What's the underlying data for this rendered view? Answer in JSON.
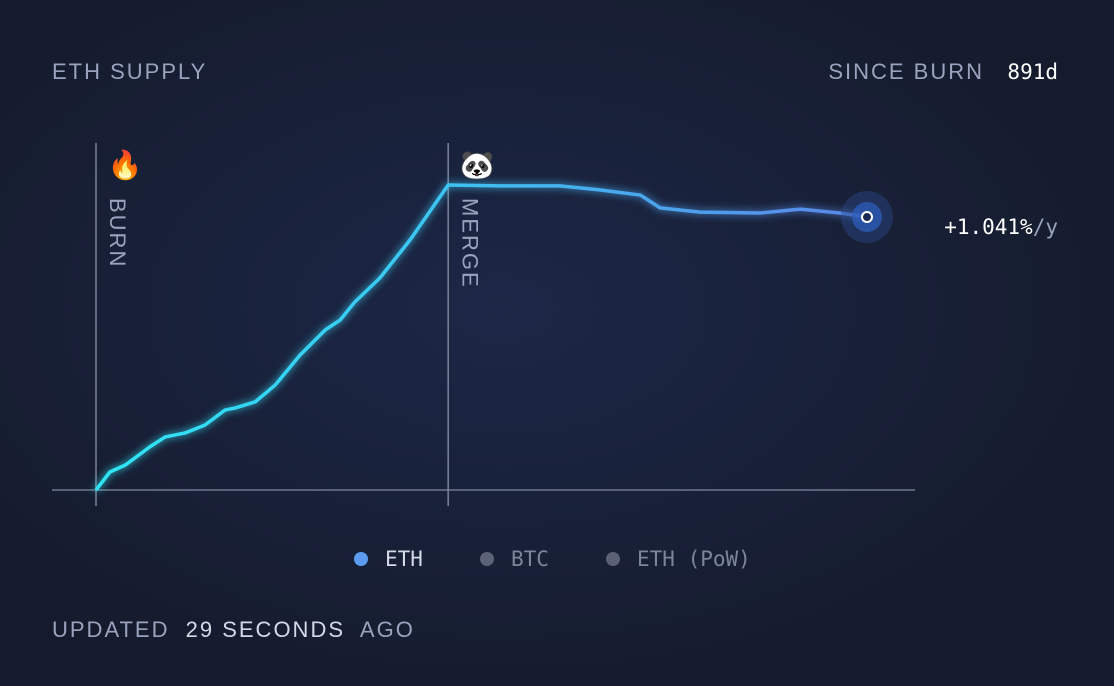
{
  "chart_data": {
    "type": "line",
    "title": "ETH SUPPLY",
    "since_label": "SINCE BURN",
    "since_value": "891d",
    "x": [
      0,
      16,
      34,
      62,
      80,
      103,
      126,
      149,
      161,
      184,
      207,
      236,
      265,
      282,
      299,
      328,
      363,
      407,
      467,
      536,
      582,
      629,
      652,
      698,
      767,
      814,
      860,
      891
    ],
    "series": [
      {
        "name": "ETH",
        "color": "#5b9cf0",
        "values": [
          0,
          5.9,
          8.2,
          14.1,
          17.4,
          18.7,
          21.3,
          26.2,
          26.9,
          28.9,
          34.4,
          44.3,
          52.5,
          55.7,
          61.6,
          69.5,
          82.0,
          100,
          99.7,
          99.7,
          98.4,
          96.7,
          92.5,
          91.1,
          90.8,
          92.1,
          90.8,
          89.5
        ]
      }
    ],
    "legend_inactive": [
      "BTC",
      "ETH (PoW)"
    ],
    "xlim": [
      0,
      891
    ],
    "ylim": [
      0,
      100
    ],
    "annotations": [
      {
        "label": "BURN",
        "icon": "🔥",
        "x": 0
      },
      {
        "label": "MERGE",
        "icon": "🐼",
        "x": 407
      }
    ],
    "end_label": "+1.041%",
    "end_label_unit": "/y",
    "footer": {
      "prefix": "UPDATED",
      "time": "29 SECONDS",
      "suffix": "AGO"
    }
  }
}
